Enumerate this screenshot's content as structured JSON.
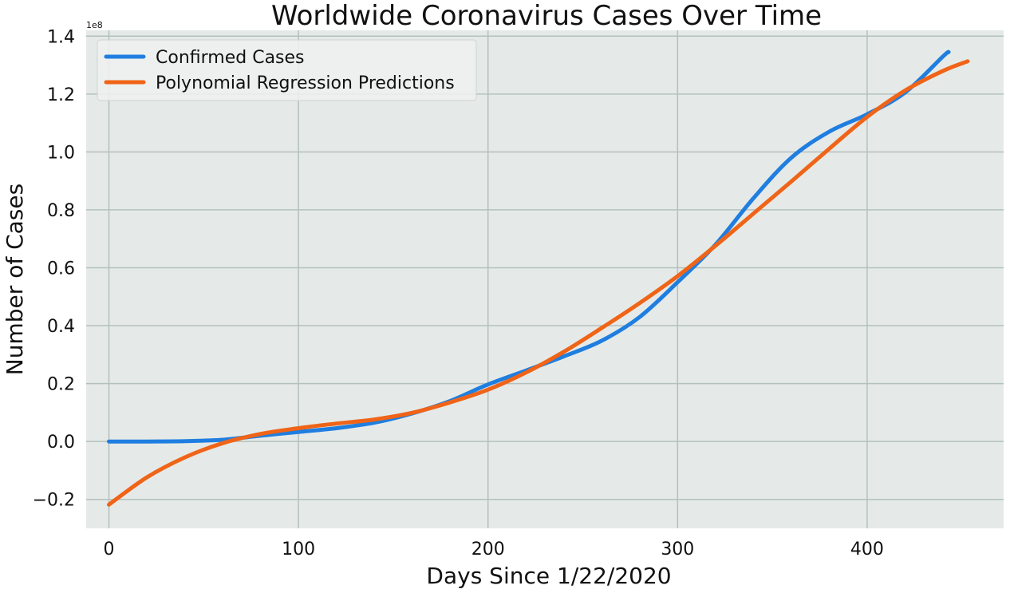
{
  "chart_data": {
    "type": "line",
    "title": "Worldwide Coronavirus Cases Over Time",
    "xlabel": "Days Since 1/22/2020",
    "ylabel": "Number of Cases",
    "y_offset_label": "1e8",
    "xlim": [
      -12,
      472
    ],
    "ylim": [
      -0.3,
      1.42
    ],
    "x_ticks": [
      0,
      100,
      200,
      300,
      400
    ],
    "x_tick_labels": [
      "0",
      "100",
      "200",
      "300",
      "400"
    ],
    "y_ticks": [
      -0.2,
      0.0,
      0.2,
      0.4,
      0.6,
      0.8,
      1.0,
      1.2,
      1.4
    ],
    "y_tick_labels": [
      "−0.2",
      "0.0",
      "0.2",
      "0.4",
      "0.6",
      "0.8",
      "1.0",
      "1.2",
      "1.4"
    ],
    "grid": true,
    "legend_position": "top-left",
    "colors": {
      "background": "#e5eae8",
      "grid": "#b4c0bd"
    },
    "series": [
      {
        "name": "Confirmed Cases",
        "color": "#1f7ee0",
        "x": [
          0,
          20,
          40,
          60,
          80,
          100,
          120,
          140,
          160,
          180,
          200,
          220,
          240,
          260,
          280,
          300,
          320,
          340,
          360,
          380,
          400,
          420,
          440,
          443
        ],
        "y": [
          0.0,
          0.0,
          0.001,
          0.006,
          0.02,
          0.033,
          0.046,
          0.065,
          0.097,
          0.14,
          0.197,
          0.245,
          0.294,
          0.348,
          0.43,
          0.55,
          0.68,
          0.84,
          0.98,
          1.07,
          1.13,
          1.205,
          1.33,
          1.345
        ]
      },
      {
        "name": "Polynomial Regression Predictions",
        "color": "#f06418",
        "x": [
          0,
          20,
          40,
          60,
          80,
          100,
          120,
          140,
          160,
          180,
          200,
          220,
          240,
          260,
          280,
          300,
          320,
          340,
          360,
          380,
          400,
          420,
          440,
          453
        ],
        "y": [
          -0.218,
          -0.124,
          -0.055,
          -0.006,
          0.026,
          0.046,
          0.062,
          0.076,
          0.099,
          0.135,
          0.179,
          0.238,
          0.31,
          0.392,
          0.478,
          0.571,
          0.676,
          0.787,
          0.898,
          1.011,
          1.121,
          1.212,
          1.28,
          1.313
        ]
      }
    ]
  }
}
